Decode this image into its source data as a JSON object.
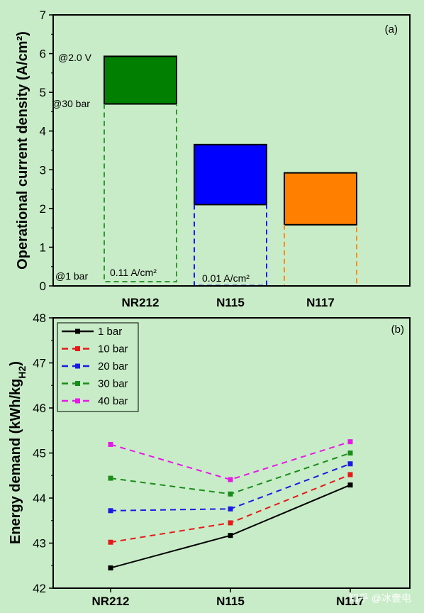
{
  "chart_data": [
    {
      "type": "bar",
      "panel_label": "(a)",
      "categories": [
        "NR212",
        "N115",
        "N117"
      ],
      "ylabel": "Operational current density (A/cm²)",
      "ylim": [
        0,
        7
      ],
      "yticks": [
        0,
        1,
        2,
        3,
        4,
        5,
        6,
        7
      ],
      "bars": [
        {
          "category": "NR212",
          "bottom": 4.7,
          "top": 5.93,
          "color": "#007f00",
          "dash_color": "#2e9a2e",
          "baseline": 0.11
        },
        {
          "category": "N115",
          "bottom": 2.1,
          "top": 3.65,
          "color": "#0000ff",
          "dash_color": "#1a1aff",
          "baseline": 0.01
        },
        {
          "category": "N117",
          "bottom": 1.58,
          "top": 2.92,
          "color": "#ff7f00",
          "dash_color": "#ff8c1a",
          "baseline": 0.0
        }
      ],
      "annotations": {
        "v_label": "@2.0 V",
        "p30_label": "@30 bar",
        "p1_label": "@1 bar",
        "base_nr212": "0.11 A/cm²",
        "base_n115": "0.01 A/cm²"
      }
    },
    {
      "type": "line",
      "panel_label": "(b)",
      "categories": [
        "NR212",
        "N115",
        "N117"
      ],
      "ylabel": "Energy demand (kWh/kgH₂)",
      "ylim": [
        42,
        48
      ],
      "yticks": [
        42,
        43,
        44,
        45,
        46,
        47,
        48
      ],
      "legend_position": "top-left",
      "series": [
        {
          "name": "1 bar",
          "values": [
            42.45,
            43.17,
            44.29
          ],
          "color": "#000000",
          "dashed": false
        },
        {
          "name": "10 bar",
          "values": [
            43.02,
            43.45,
            44.52
          ],
          "color": "#e61919",
          "dashed": true
        },
        {
          "name": "20 bar",
          "values": [
            43.72,
            43.76,
            44.76
          ],
          "color": "#1a1ae6",
          "dashed": true
        },
        {
          "name": "30 bar",
          "values": [
            44.44,
            44.09,
            45.0
          ],
          "color": "#1a8c1a",
          "dashed": true
        },
        {
          "name": "40 bar",
          "values": [
            45.19,
            44.41,
            45.25
          ],
          "color": "#e619e6",
          "dashed": true
        }
      ]
    }
  ],
  "watermark": "知乎 @冰壹电"
}
